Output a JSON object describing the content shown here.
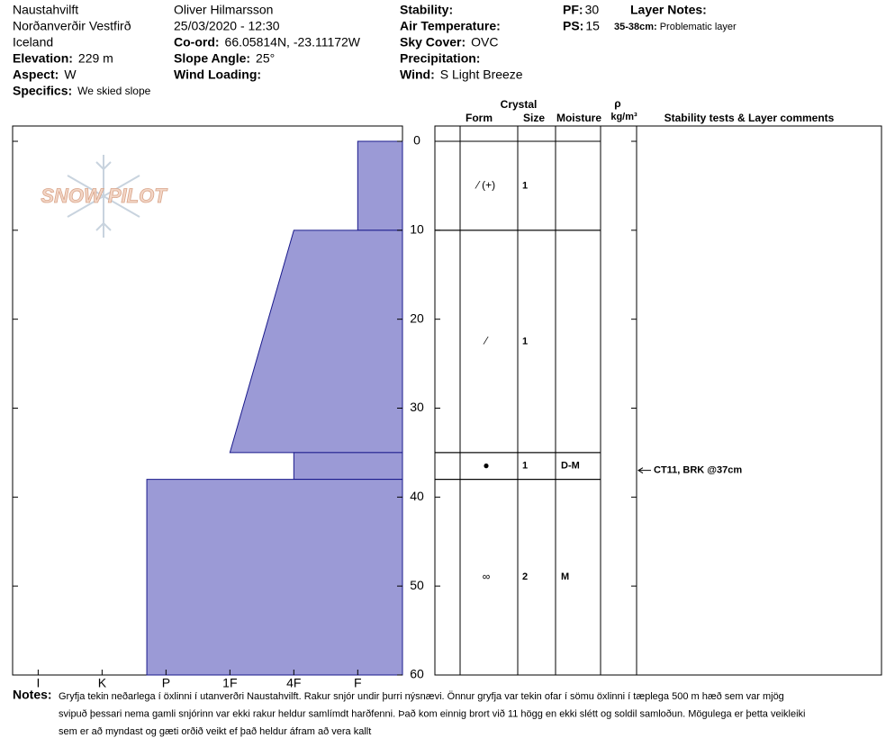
{
  "header": {
    "col1": [
      {
        "text": "Naustahvilft"
      },
      {
        "text": "Norðanverðir Vestfirð"
      },
      {
        "text": "Iceland"
      },
      {
        "label": "Elevation:",
        "value": "229 m"
      },
      {
        "label": "Aspect:",
        "value": "W"
      },
      {
        "label": "Specifics:",
        "value": "We skied slope"
      }
    ],
    "col2": [
      {
        "text": "Oliver Hilmarsson"
      },
      {
        "text": "25/03/2020 - 12:30"
      },
      {
        "label": "Co-ord:",
        "value": "66.05814N, -23.11172W"
      },
      {
        "label": "Slope Angle:",
        "value": "25°"
      },
      {
        "label": "Wind Loading:"
      }
    ],
    "col3": [
      {
        "label": "Stability:"
      },
      {
        "label": "Air Temperature:"
      },
      {
        "label": "Sky Cover:",
        "value": "OVC"
      },
      {
        "label": "Precipitation:"
      },
      {
        "label": "Wind:",
        "value": "S Light Breeze"
      }
    ],
    "col4": [
      {
        "label": "PF:",
        "value": "30"
      },
      {
        "label": "PS:",
        "value": "15"
      }
    ],
    "layer_notes": {
      "label": "Layer Notes:",
      "items": [
        {
          "label": "35-38cm:",
          "value": "Problematic layer"
        }
      ]
    }
  },
  "logo": "SNOW PILOT",
  "chart_data": {
    "type": "snow_profile",
    "ylim": [
      0,
      60
    ],
    "yticks": [
      0,
      10,
      20,
      30,
      40,
      50,
      60
    ],
    "xlim": [
      6.4,
      0.3
    ],
    "xticks": [
      {
        "value": 6,
        "label": "I"
      },
      {
        "value": 5,
        "label": "K"
      },
      {
        "value": 4,
        "label": "P"
      },
      {
        "value": 3,
        "label": "1F"
      },
      {
        "value": 2,
        "label": "4F"
      },
      {
        "value": 1,
        "label": "F"
      }
    ],
    "color": "#9b9ad6",
    "layers": [
      {
        "top": 0,
        "bottom": 10,
        "hardness_top": 1,
        "hardness_bottom": 1,
        "form": "⁄ (+)",
        "size": 1
      },
      {
        "top": 10,
        "bottom": 35,
        "hardness_top": 2,
        "hardness_bottom": 3,
        "form": "⁄",
        "size": 1
      },
      {
        "top": 35,
        "bottom": 38,
        "hardness_top": 2,
        "hardness_bottom": 2,
        "form": "●",
        "size": 1,
        "moisture": "D-M"
      },
      {
        "top": 38,
        "bottom": 60,
        "hardness_top": 4.3,
        "hardness_bottom": 4.3,
        "form": "∞",
        "size": 2,
        "moisture": "M"
      }
    ],
    "table_headers": {
      "crystal": "Crystal",
      "form": "Form",
      "size": "Size",
      "moisture": "Moisture",
      "density": "ρ",
      "density_unit": "kg/m³",
      "comments": "Stability tests & Layer comments"
    },
    "stability_tests": [
      {
        "text": "CT11, BRK @37cm",
        "depth": 37
      }
    ]
  },
  "notes": {
    "label": "Notes:",
    "lines": [
      "Gryfja tekin neðarlega í öxlinni í utanverðri Naustahvilft. Rakur snjór undir þurri nýsnævi. Önnur gryfja var tekin ofar í sömu öxlinni í tæplega 500 m hæð sem var mjög",
      "svipuð þessari nema gamli snjórinn var ekki rakur heldur samlímdt harðfenni. Það kom einnig brort við 11 högg en ekki slétt og soldil samloðun. Mögulega er þetta veikleiki",
      "sem er að myndast og gæti orðið veikt ef það heldur áfram að vera kallt"
    ]
  }
}
